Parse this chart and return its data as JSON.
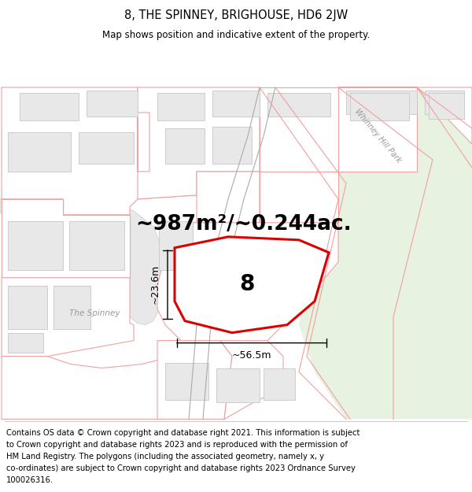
{
  "title": "8, THE SPINNEY, BRIGHOUSE, HD6 2JW",
  "subtitle": "Map shows position and indicative extent of the property.",
  "area_text": "~987m²/~0.244ac.",
  "label_number": "8",
  "dim_width": "~56.5m",
  "dim_height": "~23.6m",
  "street_label": "The Spinney",
  "park_label": "Whinney Hill Park",
  "footer_lines": [
    "Contains OS data © Crown copyright and database right 2021. This information is subject",
    "to Crown copyright and database rights 2023 and is reproduced with the permission of",
    "HM Land Registry. The polygons (including the associated geometry, namely x, y",
    "co-ordinates) are subject to Crown copyright and database rights 2023 Ordnance Survey",
    "100026316."
  ],
  "bg_color_main": "#ffffff",
  "bg_color_park": "#e8f2e0",
  "property_fill": "#ffffff",
  "property_edge": "#dd0000",
  "building_fill": "#e8e8e8",
  "building_edge": "#cccccc",
  "plot_edge": "#f0a0a0",
  "road_fill": "#e8e8e8",
  "road_edge": "#cccccc",
  "footer_bg": "#ffffff",
  "title_fontsize": 10.5,
  "subtitle_fontsize": 8.5,
  "area_fontsize": 19,
  "number_fontsize": 20,
  "dim_fontsize": 9,
  "street_fontsize": 7.5,
  "park_fontsize": 7,
  "footer_fontsize": 7.2
}
